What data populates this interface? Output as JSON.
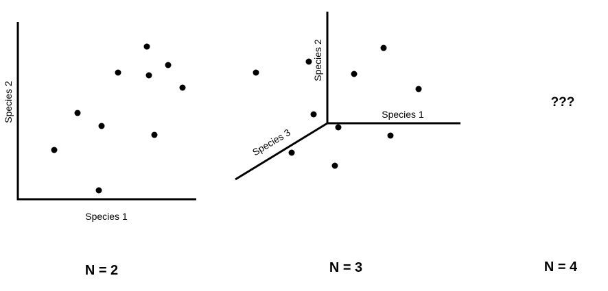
{
  "panel_2d": {
    "x_label": "Species 1",
    "y_label": "Species 2",
    "n_label": "N = 2",
    "point_count": 11
  },
  "panel_3d": {
    "axis1_label": "Species 1",
    "axis2_label": "Species 2",
    "axis3_label": "Species 3",
    "n_label": "N = 3",
    "point_count": 11
  },
  "panel_4d": {
    "placeholder": "???",
    "n_label": "N = 4"
  }
}
